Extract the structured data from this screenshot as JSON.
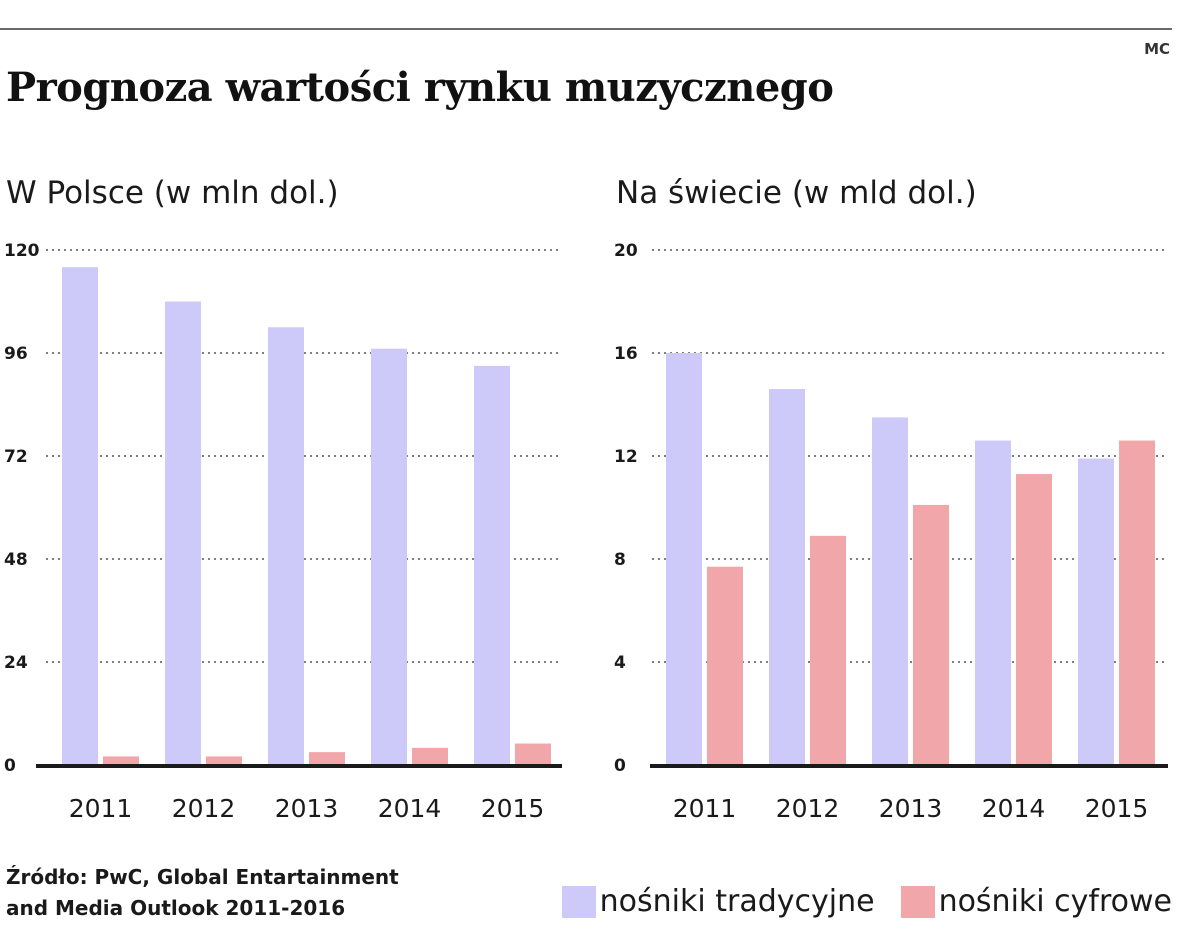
{
  "header": {
    "credit": "MC",
    "title": "Prognoza wartości rynku muzycznego"
  },
  "colors": {
    "traditional": "#cdcafa",
    "digital": "#f1a6aa"
  },
  "source": {
    "line1": "Źródło: PwC, Global Entartainment",
    "line2": "and Media Outlook 2011-2016"
  },
  "legend": {
    "traditional": "nośniki tradycyjne",
    "digital": "nośniki cyfrowe"
  },
  "chart_data": [
    {
      "type": "bar",
      "title": "W Polsce (w mln dol.)",
      "categories": [
        "2011",
        "2012",
        "2013",
        "2014",
        "2015"
      ],
      "yticks": [
        "0",
        "24",
        "48",
        "72",
        "96",
        "120"
      ],
      "ylim": [
        0,
        120
      ],
      "series": [
        {
          "name": "nośniki tradycyjne",
          "values": [
            116,
            108,
            102,
            97,
            93
          ]
        },
        {
          "name": "nośniki cyfrowe",
          "values": [
            2,
            2,
            3,
            4,
            5
          ]
        }
      ]
    },
    {
      "type": "bar",
      "title": "Na świecie (w mld dol.)",
      "categories": [
        "2011",
        "2012",
        "2013",
        "2014",
        "2015"
      ],
      "yticks": [
        "0",
        "4",
        "8",
        "12",
        "16",
        "20"
      ],
      "ylim": [
        0,
        20
      ],
      "series": [
        {
          "name": "nośniki tradycyjne",
          "values": [
            16,
            14.6,
            13.5,
            12.6,
            11.9
          ]
        },
        {
          "name": "nośniki cyfrowe",
          "values": [
            7.7,
            8.9,
            10.1,
            11.3,
            12.6
          ]
        }
      ]
    }
  ]
}
